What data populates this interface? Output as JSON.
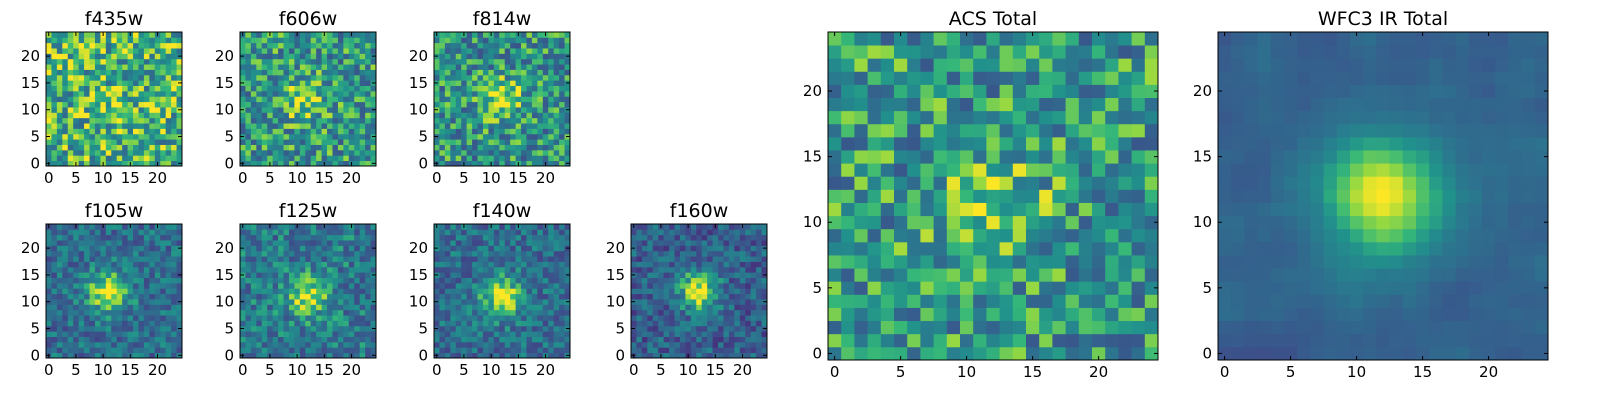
{
  "chart_data": [
    {
      "type": "heatmap",
      "title": "f435w",
      "xticks": [
        "0",
        "5",
        "10",
        "15",
        "20"
      ],
      "yticks": [
        "0",
        "5",
        "10",
        "15",
        "20"
      ],
      "xlim": [
        -0.5,
        24.5
      ],
      "ylim": [
        -0.5,
        24.5
      ],
      "grid_size": 25,
      "colormap": "viridis",
      "peak": [
        12,
        11
      ],
      "peak_strength": 0.1,
      "noise": 0.3,
      "base": 0.72,
      "seed": 11
    },
    {
      "type": "heatmap",
      "title": "f606w",
      "xticks": [
        "0",
        "5",
        "10",
        "15",
        "20"
      ],
      "yticks": [
        "0",
        "5",
        "10",
        "15",
        "20"
      ],
      "xlim": [
        -0.5,
        24.5
      ],
      "ylim": [
        -0.5,
        24.5
      ],
      "grid_size": 25,
      "colormap": "viridis",
      "peak": [
        11,
        12
      ],
      "peak_strength": 0.3,
      "noise": 0.28,
      "base": 0.62,
      "seed": 23
    },
    {
      "type": "heatmap",
      "title": "f814w",
      "xticks": [
        "0",
        "5",
        "10",
        "15",
        "20"
      ],
      "yticks": [
        "0",
        "5",
        "10",
        "15",
        "20"
      ],
      "xlim": [
        -0.5,
        24.5
      ],
      "ylim": [
        -0.5,
        24.5
      ],
      "grid_size": 25,
      "colormap": "viridis",
      "peak": [
        12,
        12
      ],
      "peak_strength": 0.35,
      "noise": 0.28,
      "base": 0.6,
      "seed": 37
    },
    {
      "type": "heatmap",
      "title": "f105w",
      "xticks": [
        "0",
        "5",
        "10",
        "15",
        "20"
      ],
      "yticks": [
        "0",
        "5",
        "10",
        "15",
        "20"
      ],
      "xlim": [
        -0.5,
        24.5
      ],
      "ylim": [
        -0.5,
        24.5
      ],
      "grid_size": 25,
      "colormap": "viridis",
      "peak": [
        11,
        12
      ],
      "peak_strength": 0.55,
      "noise": 0.2,
      "base": 0.45,
      "seed": 41
    },
    {
      "type": "heatmap",
      "title": "f125w",
      "xticks": [
        "0",
        "5",
        "10",
        "15",
        "20"
      ],
      "yticks": [
        "0",
        "5",
        "10",
        "15",
        "20"
      ],
      "xlim": [
        -0.5,
        24.5
      ],
      "ylim": [
        -0.5,
        24.5
      ],
      "grid_size": 25,
      "colormap": "viridis",
      "peak": [
        12,
        11
      ],
      "peak_strength": 0.45,
      "noise": 0.22,
      "base": 0.5,
      "seed": 53
    },
    {
      "type": "heatmap",
      "title": "f140w",
      "xticks": [
        "0",
        "5",
        "10",
        "15",
        "20"
      ],
      "yticks": [
        "0",
        "5",
        "10",
        "15",
        "20"
      ],
      "xlim": [
        -0.5,
        24.5
      ],
      "ylim": [
        -0.5,
        24.5
      ],
      "grid_size": 25,
      "colormap": "viridis",
      "peak": [
        12,
        11
      ],
      "peak_strength": 0.55,
      "noise": 0.2,
      "base": 0.45,
      "seed": 67
    },
    {
      "type": "heatmap",
      "title": "f160w",
      "xticks": [
        "0",
        "5",
        "10",
        "15",
        "20"
      ],
      "yticks": [
        "0",
        "5",
        "10",
        "15",
        "20"
      ],
      "xlim": [
        -0.5,
        24.5
      ],
      "ylim": [
        -0.5,
        24.5
      ],
      "grid_size": 25,
      "colormap": "viridis",
      "peak": [
        12,
        12
      ],
      "peak_strength": 0.6,
      "noise": 0.2,
      "base": 0.38,
      "seed": 71
    },
    {
      "type": "heatmap",
      "title": "ACS Total",
      "xticks": [
        "0",
        "5",
        "10",
        "15",
        "20"
      ],
      "yticks": [
        "0",
        "5",
        "10",
        "15",
        "20"
      ],
      "xlim": [
        -0.5,
        24.5
      ],
      "ylim": [
        -0.5,
        24.5
      ],
      "grid_size": 25,
      "colormap": "viridis",
      "peak": [
        12,
        11
      ],
      "peak_strength": 0.3,
      "noise": 0.28,
      "base": 0.62,
      "seed": 83
    },
    {
      "type": "heatmap",
      "title": "WFC3 IR Total",
      "xticks": [
        "0",
        "5",
        "10",
        "15",
        "20"
      ],
      "yticks": [
        "0",
        "5",
        "10",
        "15",
        "20"
      ],
      "xlim": [
        -0.5,
        24.5
      ],
      "ylim": [
        -0.5,
        24.5
      ],
      "grid_size": 25,
      "colormap": "viridis",
      "peak": [
        12,
        12
      ],
      "peak_strength": 0.6,
      "noise": 0.12,
      "base": 0.4,
      "seed": 97
    }
  ]
}
